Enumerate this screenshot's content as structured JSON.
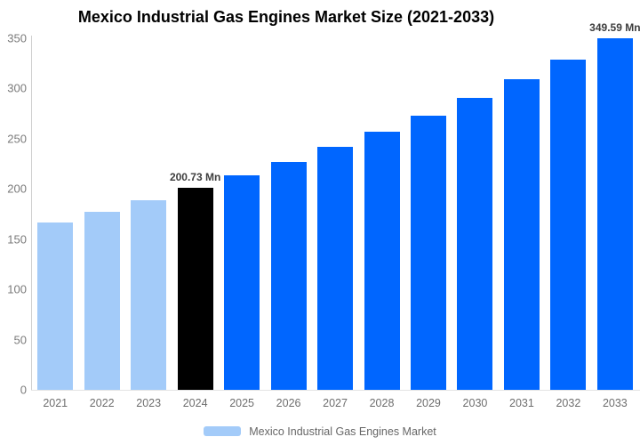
{
  "title": "Mexico Industrial Gas Engines Market Size (2021-2033)",
  "legend": {
    "label": "Mexico Industrial Gas Engines Market",
    "swatch_color": "#A3CBF9"
  },
  "colors": {
    "historical_bar": "#A3CBF9",
    "base_year_bar": "#000000",
    "forecast_bar": "#0066FF",
    "axis_line": "#CFCFCF",
    "baseline": "#E4E4E4",
    "tick_text": "#7A7A7A",
    "xlabel_text": "#6E6E6E",
    "value_label_text": "#3D3D3D",
    "legend_text": "#666666",
    "title_text": "#000000"
  },
  "chart_data": {
    "type": "bar",
    "title": "Mexico Industrial Gas Engines Market Size (2021-2033)",
    "series_name": "Mexico Industrial Gas Engines Market",
    "unit": "Mn",
    "categories": [
      "2021",
      "2022",
      "2023",
      "2024",
      "2025",
      "2026",
      "2027",
      "2028",
      "2029",
      "2030",
      "2031",
      "2032",
      "2033"
    ],
    "values": [
      166.9,
      177.5,
      188.7,
      200.73,
      213.5,
      227.1,
      241.5,
      256.9,
      273.2,
      290.6,
      309.0,
      328.7,
      349.59
    ],
    "bar_colors": [
      "#A3CBF9",
      "#A3CBF9",
      "#A3CBF9",
      "#000000",
      "#0066FF",
      "#0066FF",
      "#0066FF",
      "#0066FF",
      "#0066FF",
      "#0066FF",
      "#0066FF",
      "#0066FF",
      "#0066FF"
    ],
    "value_labels": [
      "",
      "",
      "",
      "200.73 Mn",
      "",
      "",
      "",
      "",
      "",
      "",
      "",
      "",
      "349.59 Mn"
    ],
    "xlabel": "",
    "ylabel": "",
    "ylim": [
      0,
      350
    ],
    "yticks": [
      0,
      50,
      100,
      150,
      200,
      250,
      300,
      350
    ],
    "grid": false,
    "legend_position": "bottom"
  }
}
